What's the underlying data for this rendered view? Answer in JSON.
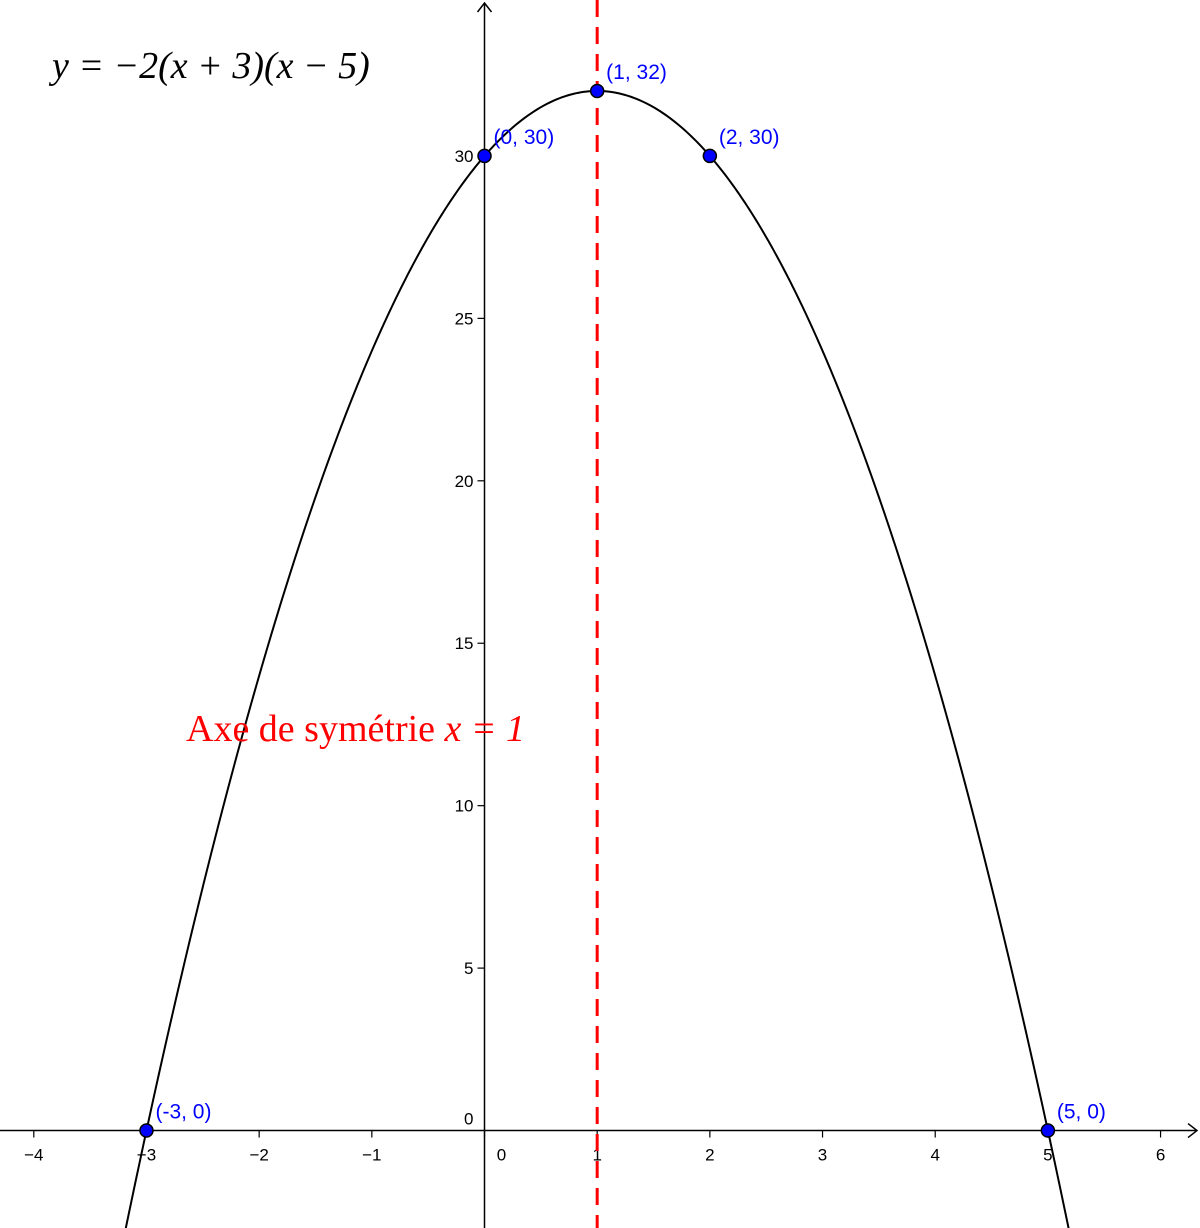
{
  "chart_data": {
    "type": "line",
    "title": "",
    "equation": "y = −2(x + 3)(x − 5)",
    "xlabel": "",
    "ylabel": "",
    "xlim": [
      -4.3,
      6.35
    ],
    "ylim": [
      -3.0,
      34.8
    ],
    "x_ticks": [
      {
        "value": -4,
        "label": "−4"
      },
      {
        "value": -3,
        "label": "−3"
      },
      {
        "value": -2,
        "label": "−2"
      },
      {
        "value": -1,
        "label": "−1"
      },
      {
        "value": 0,
        "label": "0"
      },
      {
        "value": 1,
        "label": "1"
      },
      {
        "value": 2,
        "label": "2"
      },
      {
        "value": 3,
        "label": "3"
      },
      {
        "value": 4,
        "label": "4"
      },
      {
        "value": 5,
        "label": "5"
      },
      {
        "value": 6,
        "label": "6"
      }
    ],
    "y_ticks": [
      {
        "value": 0,
        "label": "0"
      },
      {
        "value": 5,
        "label": "5"
      },
      {
        "value": 10,
        "label": "10"
      },
      {
        "value": 15,
        "label": "15"
      },
      {
        "value": 20,
        "label": "20"
      },
      {
        "value": 25,
        "label": "25"
      },
      {
        "value": 30,
        "label": "30"
      }
    ],
    "curve": {
      "formula": "-2*(x+3)*(x-5)",
      "x_range": [
        -3.28,
        5.25
      ],
      "color": "#000000"
    },
    "points": [
      {
        "x": -3,
        "y": 0,
        "label": "(-3, 0)"
      },
      {
        "x": 0,
        "y": 30,
        "label": "(0, 30)"
      },
      {
        "x": 1,
        "y": 32,
        "label": "(1, 32)"
      },
      {
        "x": 2,
        "y": 30,
        "label": "(2, 30)"
      },
      {
        "x": 5,
        "y": 0,
        "label": "(5, 0)"
      }
    ],
    "symmetry_axis": {
      "x": 1,
      "label_text": "Axe de symétrie ",
      "label_math": "x = 1",
      "color": "#ff0000",
      "style": "dashed"
    },
    "colors": {
      "points": "#0000ff",
      "labels": "#0000ff",
      "axis": "#000000"
    },
    "grid": false,
    "legend": "none"
  }
}
